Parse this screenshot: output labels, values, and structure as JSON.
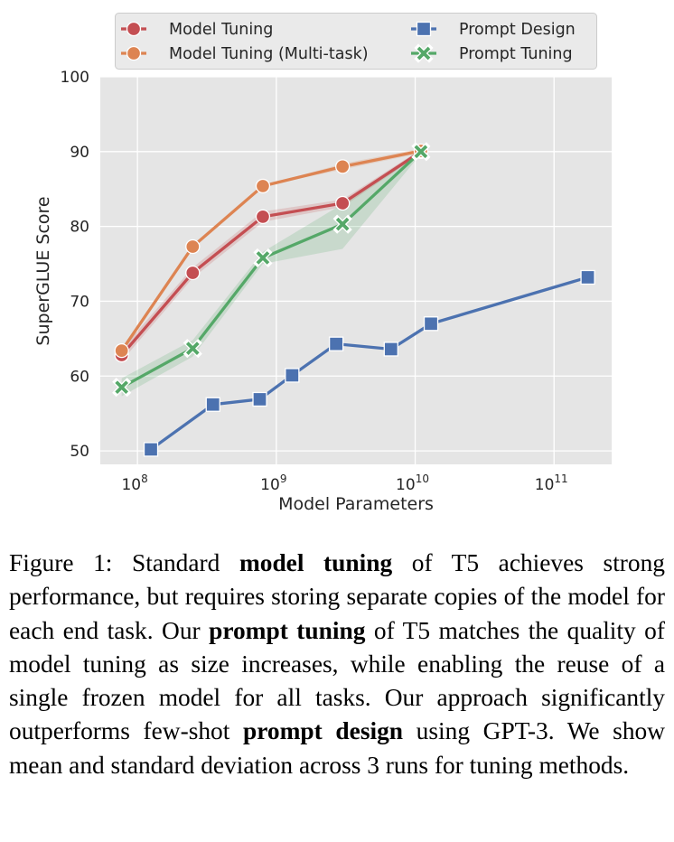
{
  "chart_data": {
    "type": "line",
    "xlabel": "Model Parameters",
    "ylabel": "SuperGLUE Score",
    "xscale": "log",
    "xlim": [
      54000000.0,
      260000000000.0
    ],
    "ylim": [
      48.2,
      100
    ],
    "xticks": [
      {
        "value": 100000000.0,
        "base": "10",
        "exp": "8"
      },
      {
        "value": 1000000000.0,
        "base": "10",
        "exp": "9"
      },
      {
        "value": 10000000000.0,
        "base": "10",
        "exp": "10"
      },
      {
        "value": 100000000000.0,
        "base": "10",
        "exp": "11"
      }
    ],
    "yticks": [
      50,
      60,
      70,
      80,
      90,
      100
    ],
    "grid": true,
    "background": "#e5e5e5",
    "legend_position": "top",
    "series": [
      {
        "name": "Model Tuning",
        "color": "#c44e52",
        "marker": "circle",
        "x": [
          77000000.0,
          250000000.0,
          800000000.0,
          3000000000.0,
          11000000000.0
        ],
        "y": [
          62.8,
          73.8,
          81.3,
          83.1,
          90.0
        ],
        "lower": [
          62.0,
          73.1,
          80.6,
          82.6,
          89.7
        ],
        "upper": [
          63.6,
          74.5,
          82.0,
          83.6,
          90.3
        ]
      },
      {
        "name": "Model Tuning (Multi-task)",
        "color": "#dd8452",
        "marker": "circle",
        "x": [
          77000000.0,
          250000000.0,
          800000000.0,
          3000000000.0,
          11000000000.0
        ],
        "y": [
          63.4,
          77.3,
          85.4,
          88.0,
          90.1
        ],
        "lower": [
          63.4,
          77.3,
          85.4,
          87.6,
          89.8
        ],
        "upper": [
          63.4,
          77.3,
          85.4,
          88.4,
          90.4
        ]
      },
      {
        "name": "Prompt Design",
        "color": "#4c72b0",
        "marker": "square",
        "x": [
          125000000.0,
          350000000.0,
          760000000.0,
          1300000000.0,
          2700000000.0,
          6700000000.0,
          13000000000.0,
          175000000000.0
        ],
        "y": [
          50.2,
          56.2,
          56.9,
          60.1,
          64.3,
          63.6,
          67.0,
          73.2
        ]
      },
      {
        "name": "Prompt Tuning",
        "color": "#55a868",
        "marker": "x",
        "x": [
          77000000.0,
          250000000.0,
          800000000.0,
          3000000000.0,
          11000000000.0
        ],
        "y": [
          58.5,
          63.7,
          75.8,
          80.3,
          90.0
        ],
        "lower": [
          57.3,
          62.6,
          75.0,
          77.0,
          89.7
        ],
        "upper": [
          59.7,
          64.8,
          76.6,
          83.0,
          90.3
        ]
      }
    ]
  },
  "caption": {
    "label": "Figure 1:",
    "parts": [
      {
        "text": " Standard ",
        "bold": false
      },
      {
        "text": "model tuning",
        "bold": true
      },
      {
        "text": " of T5 achieves strong performance, but requires storing separate copies of the model for each end task.  Our ",
        "bold": false
      },
      {
        "text": "prompt tuning",
        "bold": true
      },
      {
        "text": " of T5 matches the quality of model tuning as size increases, while enabling the reuse of a single frozen model for all tasks. Our approach significantly outperforms few-shot ",
        "bold": false
      },
      {
        "text": "prompt design",
        "bold": true
      },
      {
        "text": " using GPT-3. We show mean and standard deviation across 3 runs for tuning methods.",
        "bold": false
      }
    ]
  }
}
